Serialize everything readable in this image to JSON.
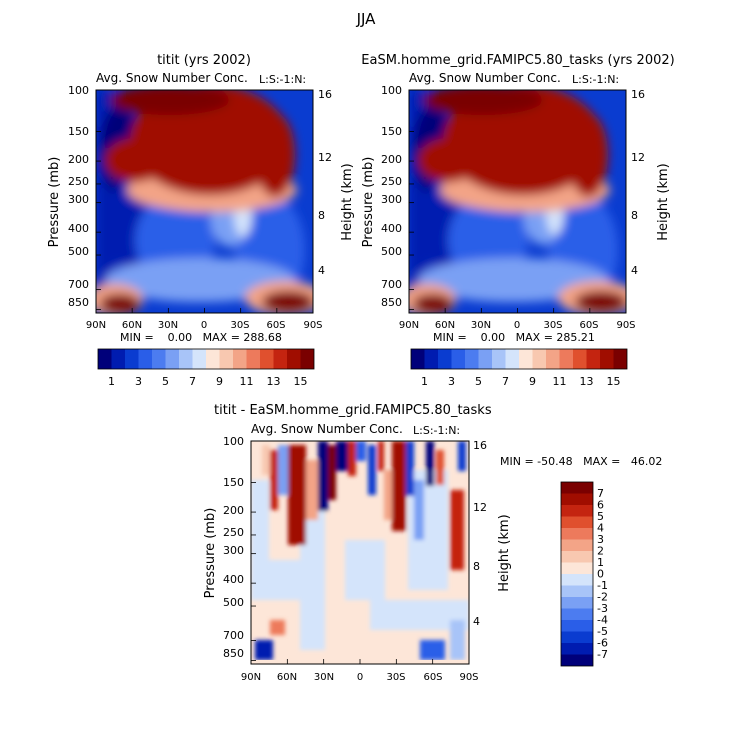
{
  "figure": {
    "title": "JJA"
  },
  "chart_data": [
    {
      "type": "heatmap",
      "title": "titit (yrs 2002)",
      "subtitle": "Avg. Snow Number Conc.",
      "corner_label": "L:S:-1:N:",
      "xlabel": "",
      "ylabel": "Pressure (mb)",
      "ylabel_right": "Height (km)",
      "xticks": [
        "90N",
        "60N",
        "30N",
        "0",
        "30S",
        "60S",
        "90S"
      ],
      "yticks": [
        "100",
        "150",
        "200",
        "250",
        "300",
        "400",
        "500",
        "700",
        "850"
      ],
      "yticks_right": [
        "16",
        "12",
        "8",
        "4"
      ],
      "stats": "MIN =    0.00   MAX = 288.68",
      "colorbar_labels": [
        "1",
        "3",
        "5",
        "7",
        "9",
        "11",
        "13",
        "15"
      ],
      "colorbar_colors": [
        "#00007a",
        "#001cb0",
        "#0a3cd0",
        "#2a5ee8",
        "#4c7cf0",
        "#7aa0f4",
        "#a8c4f8",
        "#d4e4fb",
        "#fde6d8",
        "#f8c8b0",
        "#f3a487",
        "#ed7a5c",
        "#e0502e",
        "#c42410",
        "#a00d00",
        "#7a0000"
      ],
      "zlim": [
        0,
        16
      ]
    },
    {
      "type": "heatmap",
      "title": "EaSM.homme_grid.FAMIPC5.80_tasks (yrs 2002)",
      "subtitle": "Avg. Snow Number Conc.",
      "corner_label": "L:S:-1:N:",
      "xlabel": "",
      "ylabel": "Pressure (mb)",
      "ylabel_right": "Height (km)",
      "xticks": [
        "90N",
        "60N",
        "30N",
        "0",
        "30S",
        "60S",
        "90S"
      ],
      "yticks": [
        "100",
        "150",
        "200",
        "250",
        "300",
        "400",
        "500",
        "700",
        "850"
      ],
      "yticks_right": [
        "16",
        "12",
        "8",
        "4"
      ],
      "stats": "MIN =    0.00   MAX = 285.21",
      "colorbar_labels": [
        "1",
        "3",
        "5",
        "7",
        "9",
        "11",
        "13",
        "15"
      ],
      "colorbar_colors": [
        "#00007a",
        "#001cb0",
        "#0a3cd0",
        "#2a5ee8",
        "#4c7cf0",
        "#7aa0f4",
        "#a8c4f8",
        "#d4e4fb",
        "#fde6d8",
        "#f8c8b0",
        "#f3a487",
        "#ed7a5c",
        "#e0502e",
        "#c42410",
        "#a00d00",
        "#7a0000"
      ],
      "zlim": [
        0,
        16
      ]
    },
    {
      "type": "heatmap",
      "title": "titit  -  EaSM.homme_grid.FAMIPC5.80_tasks",
      "subtitle": "Avg. Snow Number Conc.",
      "corner_label": "L:S:-1:N:",
      "xlabel": "",
      "ylabel": "Pressure (mb)",
      "ylabel_right": "Height (km)",
      "xticks": [
        "90N",
        "60N",
        "30N",
        "0",
        "30S",
        "60S",
        "90S"
      ],
      "yticks": [
        "100",
        "150",
        "200",
        "250",
        "300",
        "400",
        "500",
        "700",
        "850"
      ],
      "yticks_right": [
        "16",
        "12",
        "8",
        "4"
      ],
      "stats": "MIN = -50.48   MAX =   46.02",
      "colorbar_labels": [
        "7",
        "6",
        "5",
        "4",
        "3",
        "2",
        "1",
        "0",
        "-1",
        "-2",
        "-3",
        "-4",
        "-5",
        "-6",
        "-7"
      ],
      "colorbar_colors": [
        "#7a0000",
        "#a00d00",
        "#c42410",
        "#e0502e",
        "#ed7a5c",
        "#f3a487",
        "#f8c8b0",
        "#fde6d8",
        "#d4e4fb",
        "#a8c4f8",
        "#7aa0f4",
        "#4c7cf0",
        "#2a5ee8",
        "#0a3cd0",
        "#001cb0",
        "#00007a"
      ],
      "zlim": [
        -8,
        8
      ]
    }
  ]
}
